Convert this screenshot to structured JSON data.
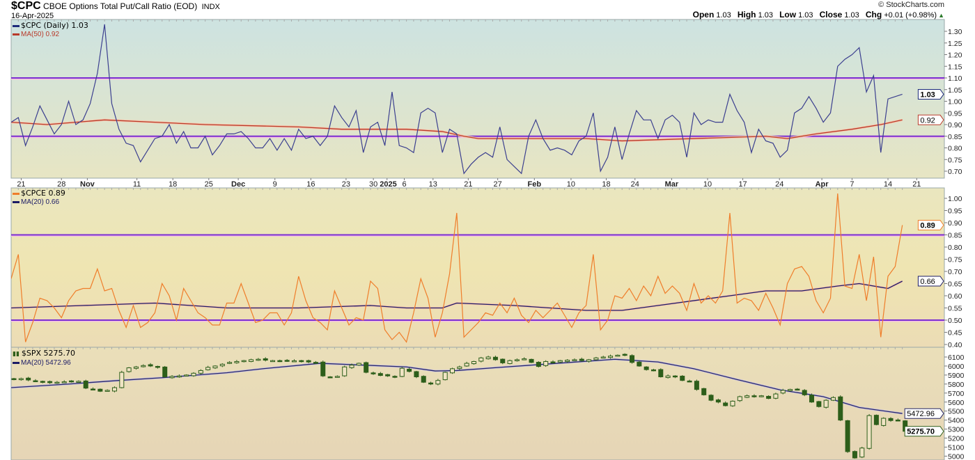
{
  "header": {
    "symbol": "$CPC",
    "name": "CBOE Options Total Put/Call Ratio (EOD)",
    "exchange": "INDX",
    "date": "16-Apr-2025",
    "copyright": "© StockCharts.com",
    "open_label": "Open",
    "open": "1.03",
    "high_label": "High",
    "high": "1.03",
    "low_label": "Low",
    "low": "1.03",
    "close_label": "Close",
    "close": "1.03",
    "chg_label": "Chg",
    "chg": "+0.01 (+0.98%)",
    "chg_icon": "triangle-up-icon"
  },
  "colors": {
    "cpc": "#3b3f8f",
    "cpc_ma": "#b83a2a",
    "cpce": "#ef7d2a",
    "cpce_ma": "#1c1c66",
    "spx": "#2d5e1a",
    "spx_ma": "#2a2a66",
    "hline": "#7b2fd0"
  },
  "x_axis": {
    "ticks": [
      {
        "label": "21",
        "index": 1.4
      },
      {
        "label": "28",
        "index": 7
      },
      {
        "label": "Nov",
        "index": 10.6,
        "bold": true
      },
      {
        "label": "11",
        "index": 17.5
      },
      {
        "label": "18",
        "index": 22.5
      },
      {
        "label": "25",
        "index": 27.5
      },
      {
        "label": "Dec",
        "index": 31.6,
        "bold": true
      },
      {
        "label": "9",
        "index": 36.7
      },
      {
        "label": "16",
        "index": 41.7
      },
      {
        "label": "23",
        "index": 46.6
      },
      {
        "label": "30",
        "index": 50.4
      },
      {
        "label": "2025",
        "index": 52.3,
        "bold": true
      },
      {
        "label": "6",
        "index": 54.7
      },
      {
        "label": "13",
        "index": 58.7
      },
      {
        "label": "21",
        "index": 63.6
      },
      {
        "label": "27",
        "index": 67.7
      },
      {
        "label": "Feb",
        "index": 72.8,
        "bold": true
      },
      {
        "label": "10",
        "index": 77.9
      },
      {
        "label": "18",
        "index": 82.8
      },
      {
        "label": "24",
        "index": 86.8
      },
      {
        "label": "Mar",
        "index": 91.9,
        "bold": true
      },
      {
        "label": "10",
        "index": 96.9
      },
      {
        "label": "17",
        "index": 101.8
      },
      {
        "label": "24",
        "index": 106.9
      },
      {
        "label": "Apr",
        "index": 112.8,
        "bold": true
      },
      {
        "label": "7",
        "index": 117
      },
      {
        "label": "14",
        "index": 122
      },
      {
        "label": "21",
        "index": 126
      }
    ]
  },
  "chart_data": [
    {
      "type": "line",
      "title": "$CPC (Daily)",
      "legend": [
        {
          "label": "$CPC (Daily) 1.03"
        },
        {
          "label": "MA(50) 0.92"
        }
      ],
      "ylim": [
        0.68,
        1.35
      ],
      "yticks": [
        0.7,
        0.75,
        0.8,
        0.85,
        0.9,
        0.95,
        1.0,
        1.05,
        1.1,
        1.15,
        1.2,
        1.25,
        1.3
      ],
      "hlines": [
        1.1,
        0.85
      ],
      "last_tags": [
        {
          "label": "1.03",
          "value": 1.03,
          "series": "cpc",
          "bold": true
        },
        {
          "label": "0.92",
          "value": 0.92,
          "series": "cpc_ma"
        }
      ],
      "series": [
        {
          "name": "$CPC",
          "values": [
            0.91,
            0.93,
            0.81,
            0.89,
            0.98,
            0.92,
            0.86,
            0.9,
            1.0,
            0.9,
            0.92,
            0.99,
            1.12,
            1.33,
            0.99,
            0.88,
            0.82,
            0.81,
            0.74,
            0.79,
            0.84,
            0.85,
            0.9,
            0.82,
            0.87,
            0.8,
            0.8,
            0.85,
            0.77,
            0.81,
            0.86,
            0.86,
            0.87,
            0.84,
            0.8,
            0.8,
            0.84,
            0.79,
            0.84,
            0.79,
            0.88,
            0.84,
            0.85,
            0.81,
            0.85,
            0.98,
            0.93,
            0.89,
            0.96,
            0.78,
            0.89,
            0.91,
            0.81,
            1.04,
            0.81,
            0.8,
            0.78,
            0.95,
            0.97,
            0.95,
            0.78,
            0.88,
            0.86,
            0.69,
            0.73,
            0.76,
            0.78,
            0.76,
            0.89,
            0.75,
            0.72,
            0.69,
            0.85,
            0.92,
            0.84,
            0.79,
            0.8,
            0.79,
            0.77,
            0.83,
            0.85,
            0.95,
            0.7,
            0.76,
            0.89,
            0.75,
            0.86,
            0.96,
            0.92,
            0.92,
            0.84,
            0.92,
            0.94,
            0.91,
            0.76,
            0.95,
            0.9,
            0.92,
            0.91,
            0.91,
            1.03,
            0.96,
            0.91,
            0.78,
            0.88,
            0.83,
            0.82,
            0.76,
            0.79,
            0.95,
            0.97,
            1.02,
            0.97,
            0.91,
            0.95,
            1.15,
            1.18,
            1.2,
            1.23,
            1.04,
            1.11,
            0.78,
            1.01,
            1.02,
            1.03
          ]
        },
        {
          "name": "MA(50)",
          "points": [
            [
              0,
              0.91
            ],
            [
              5,
              0.9
            ],
            [
              13,
              0.92
            ],
            [
              20,
              0.91
            ],
            [
              27,
              0.9
            ],
            [
              40,
              0.89
            ],
            [
              46,
              0.88
            ],
            [
              55,
              0.88
            ],
            [
              60,
              0.87
            ],
            [
              63,
              0.85
            ],
            [
              65,
              0.84
            ],
            [
              80,
              0.84
            ],
            [
              85,
              0.83
            ],
            [
              105,
              0.85
            ],
            [
              108,
              0.84
            ],
            [
              112,
              0.86
            ],
            [
              117,
              0.88
            ],
            [
              121,
              0.9
            ],
            [
              124,
              0.92
            ]
          ]
        }
      ]
    },
    {
      "type": "line",
      "title": "$CPCE",
      "legend": [
        {
          "label": "$CPCE 0.89"
        },
        {
          "label": "MA(20) 0.66"
        }
      ],
      "ylim": [
        0.38,
        1.04
      ],
      "yticks": [
        0.4,
        0.45,
        0.5,
        0.55,
        0.6,
        0.65,
        0.7,
        0.75,
        0.8,
        0.85,
        0.9,
        0.95,
        1.0
      ],
      "hlines": [
        0.85,
        0.5
      ],
      "last_tags": [
        {
          "label": "0.89",
          "value": 0.89,
          "series": "cpce",
          "bold": true
        },
        {
          "label": "0.66",
          "value": 0.66,
          "series": "cpce_ma"
        }
      ],
      "series": [
        {
          "name": "$CPCE",
          "values": [
            0.67,
            0.77,
            0.41,
            0.49,
            0.59,
            0.58,
            0.55,
            0.51,
            0.58,
            0.62,
            0.63,
            0.63,
            0.71,
            0.62,
            0.63,
            0.54,
            0.47,
            0.56,
            0.47,
            0.49,
            0.53,
            0.65,
            0.6,
            0.5,
            0.63,
            0.58,
            0.53,
            0.51,
            0.48,
            0.48,
            0.57,
            0.57,
            0.65,
            0.57,
            0.49,
            0.5,
            0.53,
            0.53,
            0.48,
            0.53,
            0.68,
            0.58,
            0.51,
            0.49,
            0.46,
            0.62,
            0.55,
            0.48,
            0.51,
            0.5,
            0.66,
            0.63,
            0.46,
            0.42,
            0.45,
            0.41,
            0.53,
            0.67,
            0.59,
            0.43,
            0.53,
            0.69,
            0.94,
            0.43,
            0.46,
            0.49,
            0.53,
            0.52,
            0.57,
            0.53,
            0.59,
            0.52,
            0.49,
            0.54,
            0.51,
            0.54,
            0.57,
            0.52,
            0.47,
            0.53,
            0.56,
            0.77,
            0.46,
            0.5,
            0.6,
            0.59,
            0.63,
            0.58,
            0.64,
            0.6,
            0.68,
            0.61,
            0.64,
            0.61,
            0.54,
            0.65,
            0.57,
            0.6,
            0.57,
            0.62,
            0.94,
            0.57,
            0.59,
            0.58,
            0.54,
            0.61,
            0.55,
            0.48,
            0.65,
            0.71,
            0.72,
            0.68,
            0.58,
            0.53,
            0.59,
            1.02,
            0.64,
            0.63,
            0.77,
            0.58,
            0.76,
            0.43,
            0.68,
            0.72,
            0.89
          ]
        },
        {
          "name": "MA(20)",
          "points": [
            [
              0,
              0.55
            ],
            [
              10,
              0.56
            ],
            [
              20,
              0.57
            ],
            [
              30,
              0.55
            ],
            [
              40,
              0.55
            ],
            [
              50,
              0.56
            ],
            [
              55,
              0.55
            ],
            [
              60,
              0.55
            ],
            [
              62,
              0.57
            ],
            [
              70,
              0.56
            ],
            [
              80,
              0.54
            ],
            [
              85,
              0.54
            ],
            [
              90,
              0.56
            ],
            [
              100,
              0.6
            ],
            [
              105,
              0.62
            ],
            [
              110,
              0.62
            ],
            [
              115,
              0.64
            ],
            [
              118,
              0.65
            ],
            [
              122,
              0.63
            ],
            [
              124,
              0.66
            ]
          ]
        }
      ]
    },
    {
      "type": "candlestick",
      "title": "$SPX",
      "legend": [
        {
          "label": "$SPX 5275.70"
        },
        {
          "label": "MA(20) 5472.96"
        }
      ],
      "ylim": [
        4960,
        6200
      ],
      "yticks": [
        5000,
        5100,
        5200,
        5300,
        5400,
        5500,
        5600,
        5700,
        5800,
        5900,
        6000,
        6100
      ],
      "last_tags": [
        {
          "label": "5472.96",
          "value": 5472.96,
          "series": "spx_ma"
        },
        {
          "label": "5275.70",
          "value": 5275.7,
          "series": "spx",
          "bold": true
        }
      ],
      "series": [
        {
          "name": "$SPX close",
          "values": [
            5850,
            5860,
            5845,
            5830,
            5820,
            5815,
            5820,
            5825,
            5830,
            5830,
            5755,
            5745,
            5720,
            5730,
            5760,
            5930,
            5980,
            5990,
            6005,
            6000,
            5985,
            5880,
            5885,
            5890,
            5900,
            5920,
            5950,
            5985,
            6000,
            6020,
            6040,
            6050,
            6060,
            6070,
            6075,
            6065,
            6060,
            6055,
            6060,
            6058,
            6050,
            6045,
            6040,
            5890,
            5880,
            5885,
            5990,
            6010,
            6030,
            5930,
            5915,
            5895,
            5890,
            5880,
            5975,
            5940,
            5880,
            5820,
            5800,
            5840,
            5930,
            5970,
            5990,
            6030,
            6050,
            6090,
            6100,
            6070,
            6035,
            6060,
            6070,
            6080,
            6040,
            5995,
            6050,
            6040,
            6060,
            6065,
            6070,
            6060,
            6070,
            6090,
            6100,
            6110,
            6120,
            6120,
            6040,
            6000,
            5960,
            5955,
            5880,
            5890,
            5880,
            5840,
            5830,
            5740,
            5680,
            5620,
            5600,
            5560,
            5610,
            5660,
            5670,
            5660,
            5670,
            5640,
            5690,
            5730,
            5740,
            5740,
            5680,
            5600,
            5550,
            5620,
            5650,
            5400,
            5050,
            4980,
            5090,
            5450,
            5350,
            5420,
            5395,
            5400,
            5275.7
          ]
        },
        {
          "name": "MA(20)",
          "points": [
            [
              0,
              5760
            ],
            [
              8,
              5800
            ],
            [
              15,
              5840
            ],
            [
              21,
              5870
            ],
            [
              30,
              5925
            ],
            [
              35,
              5970
            ],
            [
              43,
              6030
            ],
            [
              55,
              5990
            ],
            [
              59,
              5945
            ],
            [
              62,
              5950
            ],
            [
              68,
              5985
            ],
            [
              76,
              6030
            ],
            [
              84,
              6075
            ],
            [
              90,
              6045
            ],
            [
              95,
              5970
            ],
            [
              101,
              5850
            ],
            [
              107,
              5735
            ],
            [
              113,
              5660
            ],
            [
              118,
              5540
            ],
            [
              124,
              5472.96
            ]
          ]
        }
      ]
    }
  ]
}
